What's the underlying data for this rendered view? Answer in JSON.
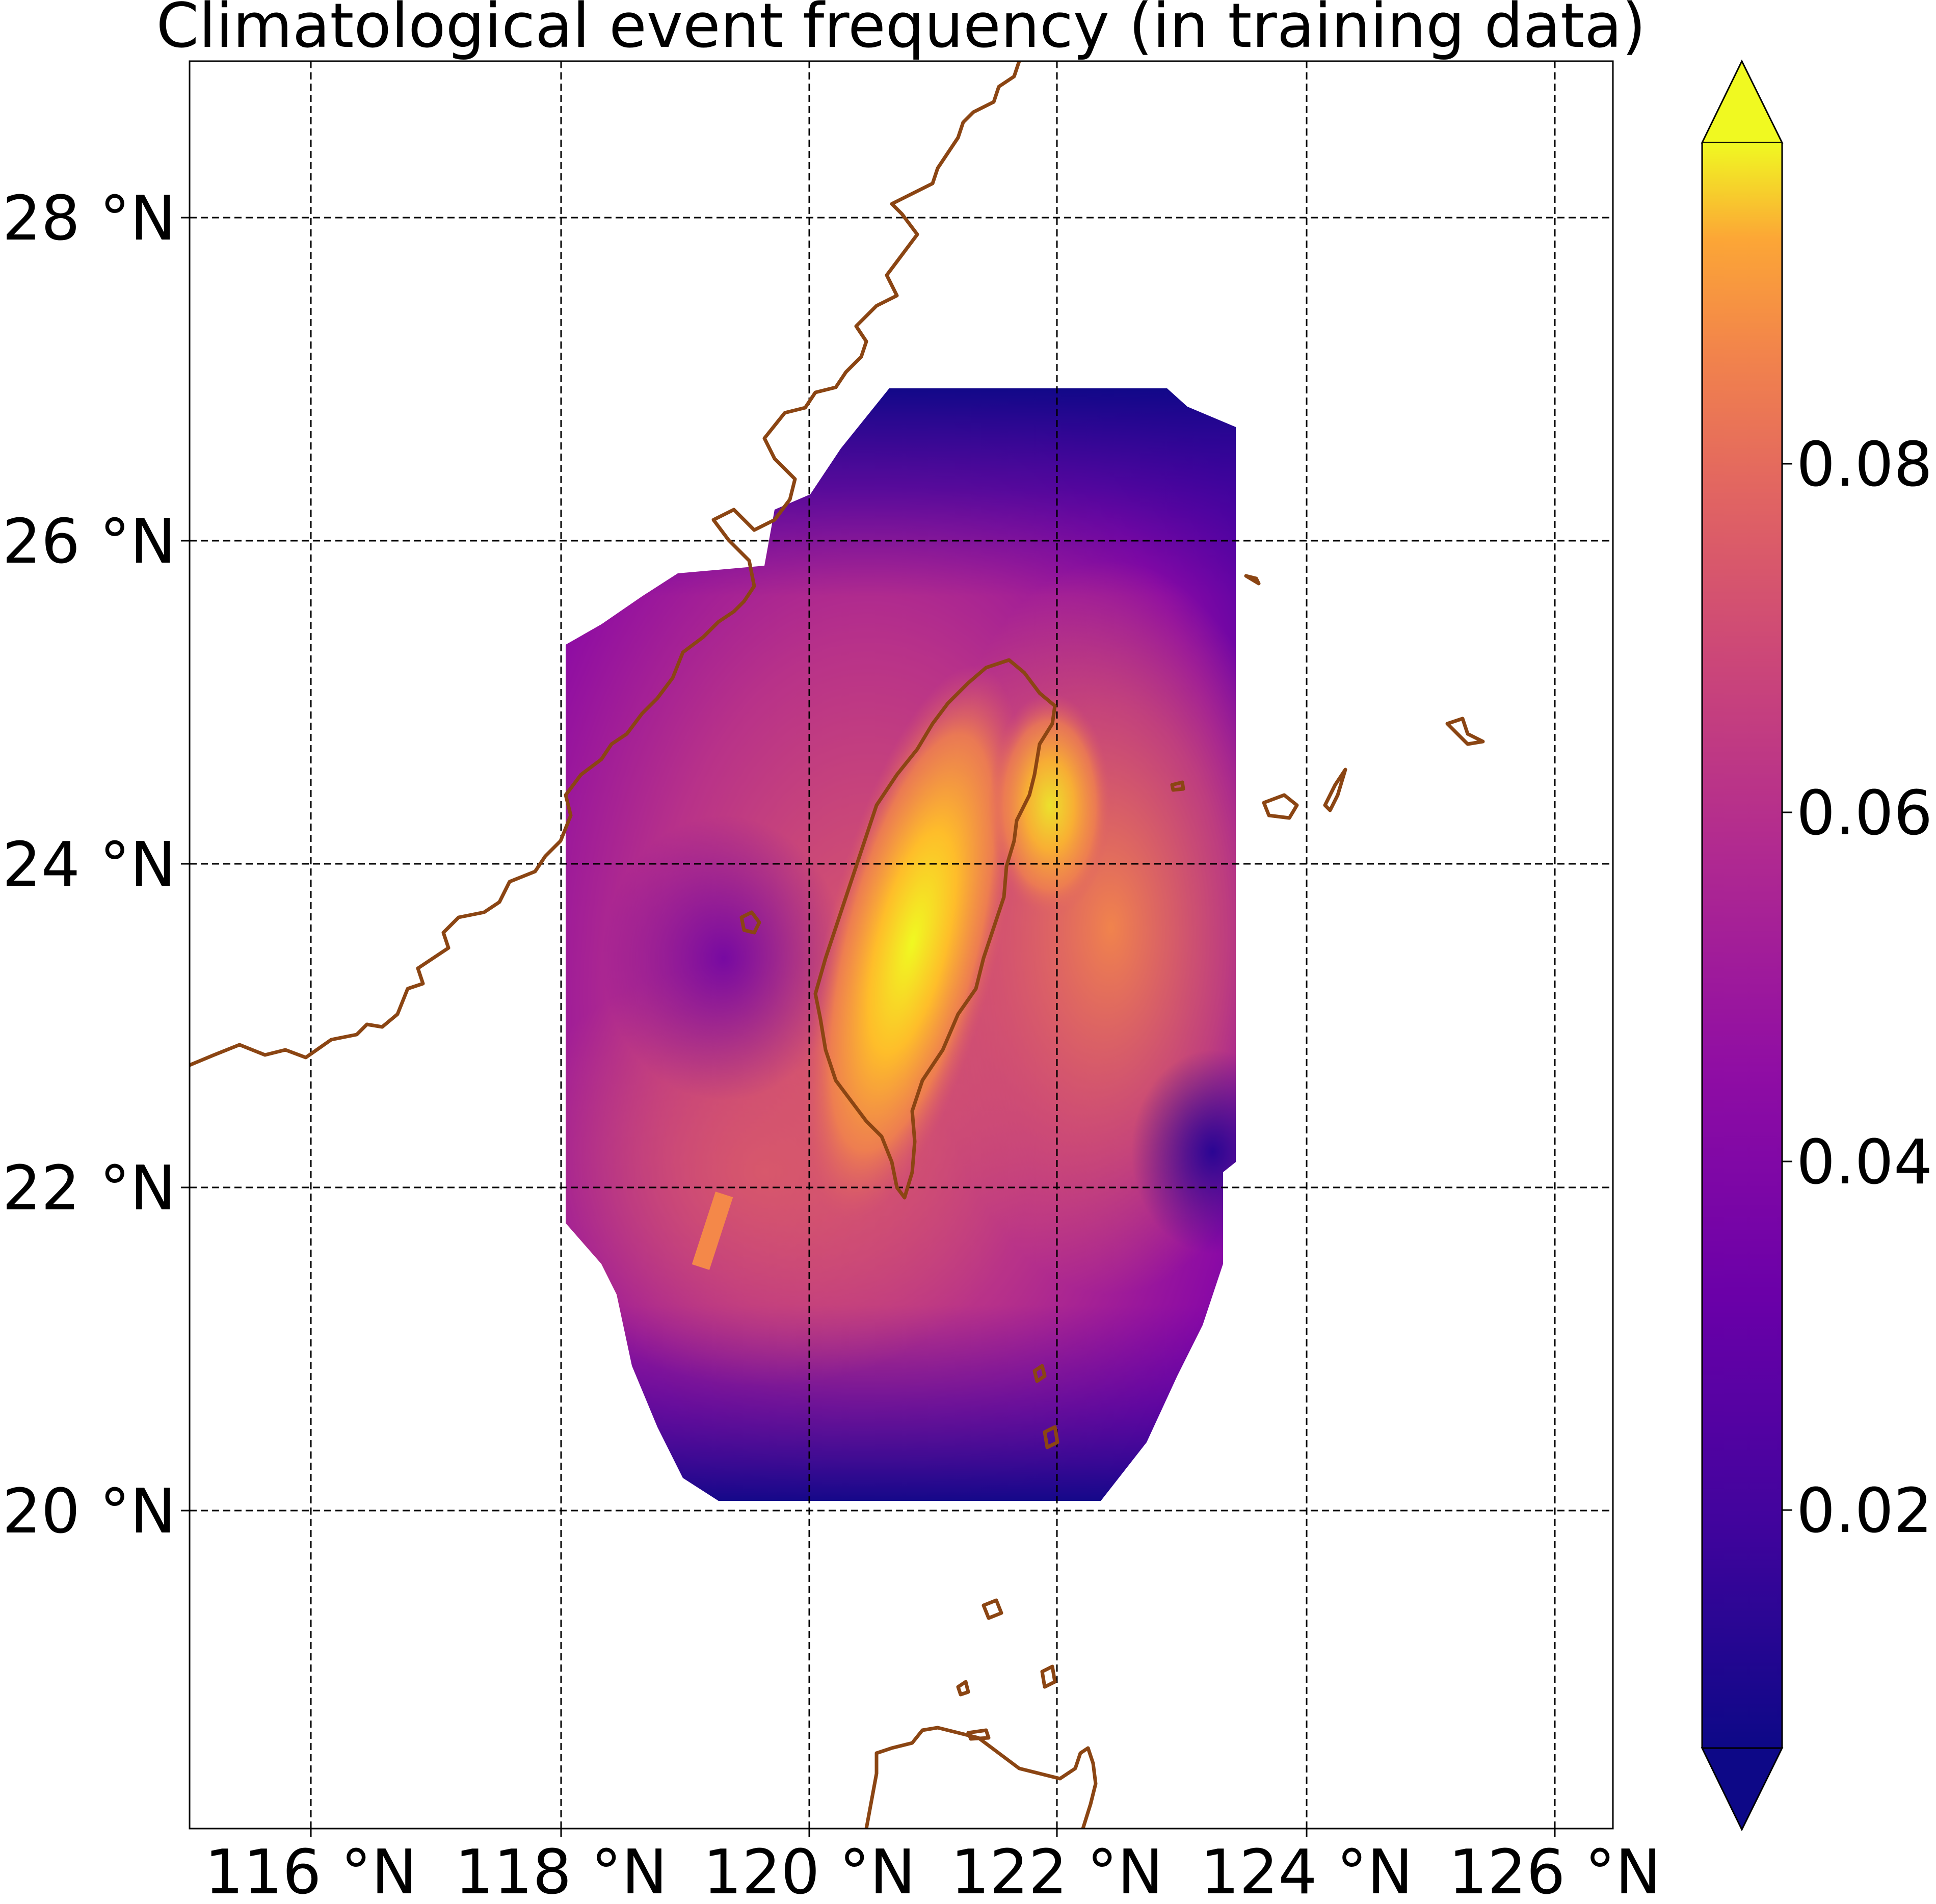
{
  "title": "Climatological event frequency (in training data)",
  "x_axis": {
    "ticks": [
      {
        "value": 116,
        "label": "116 °N"
      },
      {
        "value": 118,
        "label": "118 °N"
      },
      {
        "value": 120,
        "label": "120 °N"
      },
      {
        "value": 122,
        "label": "122 °N"
      },
      {
        "value": 124,
        "label": "124 °N"
      },
      {
        "value": 126,
        "label": "126 °N"
      }
    ],
    "range": [
      115.0,
      126.5
    ]
  },
  "y_axis": {
    "ticks": [
      {
        "value": 20,
        "label": "20 °N"
      },
      {
        "value": 22,
        "label": "22 °N"
      },
      {
        "value": 24,
        "label": "24 °N"
      },
      {
        "value": 26,
        "label": "26 °N"
      },
      {
        "value": 28,
        "label": "28 °N"
      }
    ],
    "range": [
      18.0,
      29.0
    ]
  },
  "grid": true,
  "colorbar": {
    "colormap": "plasma",
    "extend": "both",
    "range": [
      0.005,
      0.095
    ],
    "ticks": [
      {
        "value": 0.02,
        "label": "0.02"
      },
      {
        "value": 0.04,
        "label": "0.04"
      },
      {
        "value": 0.06,
        "label": "0.06"
      },
      {
        "value": 0.08,
        "label": "0.08"
      }
    ],
    "colors": [
      "#0d0887",
      "#5302a3",
      "#8b0aa5",
      "#b83289",
      "#db5c68",
      "#f48849",
      "#febd2a",
      "#f0f921"
    ]
  },
  "coastline_color": "#8B4513",
  "chart_data": {
    "type": "heatmap",
    "title": "Climatological event frequency (in training data)",
    "xlabel": "",
    "ylabel": "",
    "xlim": [
      115.0,
      126.5
    ],
    "ylim": [
      18.0,
      29.0
    ],
    "colorbar_range": [
      0.005,
      0.095
    ],
    "approx_field_summary": {
      "domain_extent": {
        "lon": [
          118.0,
          123.5
        ],
        "lat": [
          20.0,
          27.0
        ]
      },
      "max_region": {
        "lon": 120.8,
        "lat": 23.3,
        "value": 0.09
      },
      "east_of_taiwan_value": 0.075,
      "southwest_ocean_value": 0.05,
      "northern_edge_value": 0.01,
      "southern_edge_value": 0.01
    }
  }
}
